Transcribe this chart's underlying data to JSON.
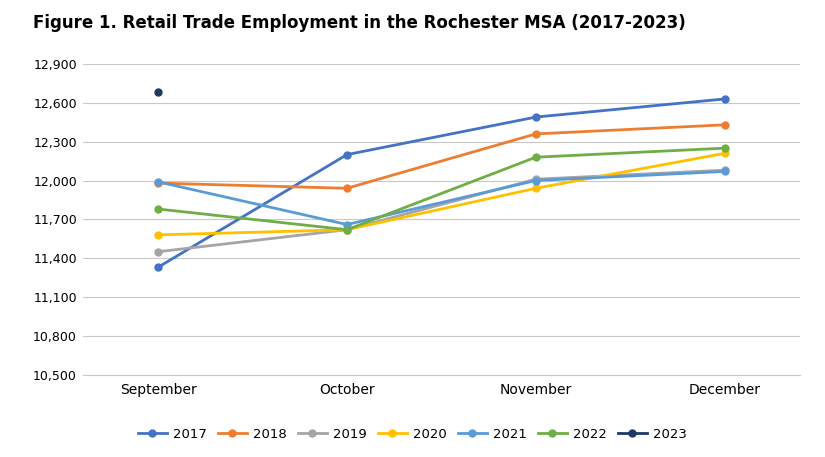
{
  "title": "Figure 1. Retail Trade Employment in the Rochester MSA (2017-2023)",
  "months": [
    "September",
    "October",
    "November",
    "December"
  ],
  "series": {
    "2017": {
      "values": [
        11330,
        12200,
        12490,
        12630
      ],
      "color": "#4472C4"
    },
    "2018": {
      "values": [
        11980,
        11940,
        12360,
        12430
      ],
      "color": "#ED7D31"
    },
    "2019": {
      "values": [
        11450,
        11620,
        12010,
        12080
      ],
      "color": "#A5A5A5"
    },
    "2020": {
      "values": [
        11580,
        11620,
        11940,
        12210
      ],
      "color": "#FFC000"
    },
    "2021": {
      "values": [
        11990,
        11660,
        12000,
        12070
      ],
      "color": "#5B9BD5"
    },
    "2022": {
      "values": [
        11780,
        11620,
        12180,
        12250
      ],
      "color": "#70AD47"
    },
    "2023": {
      "values": [
        12680,
        null,
        null,
        null
      ],
      "color": "#1F3864"
    }
  },
  "legend_order": [
    "2017",
    "2018",
    "2019",
    "2020",
    "2021",
    "2022",
    "2023"
  ],
  "ylim": [
    10500,
    12900
  ],
  "yticks": [
    10500,
    10800,
    11100,
    11400,
    11700,
    12000,
    12300,
    12600,
    12900
  ],
  "background_color": "#ffffff",
  "grid_color": "#c8c8c8",
  "title_fontsize": 12,
  "axis_fontsize": 9,
  "xlabel_fontsize": 10
}
